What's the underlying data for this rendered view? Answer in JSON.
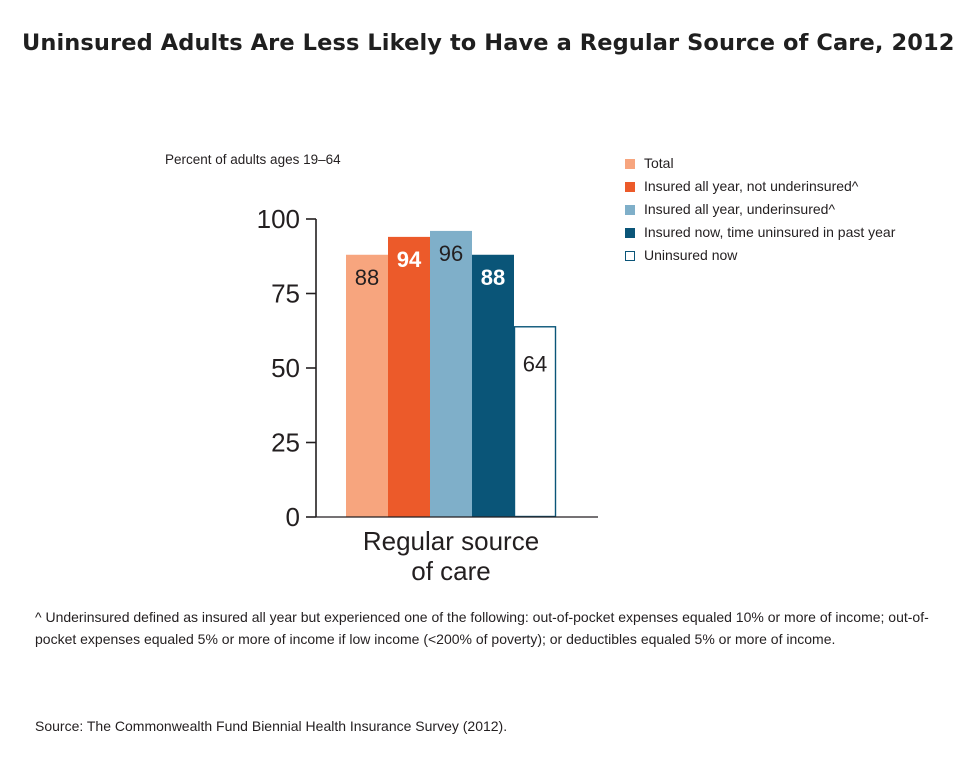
{
  "chart_data": {
    "type": "bar",
    "title": "Uninsured Adults Are Less Likely to Have a Regular Source of Care, 2012",
    "ylabel": "Percent of adults ages 19–64",
    "categories": [
      "Regular source of care"
    ],
    "category_lines": [
      "Regular source",
      "of care"
    ],
    "ylim": [
      0,
      100
    ],
    "yticks": [
      0,
      25,
      50,
      75,
      100
    ],
    "grid": false,
    "legend_position": "top-right",
    "series": [
      {
        "name": "Total",
        "values": [
          88
        ],
        "label": "88",
        "color": "#f7a57e",
        "label_color": "#231f20",
        "outline_only": false
      },
      {
        "name": "Insured all year, not underinsured^",
        "values": [
          94
        ],
        "label": "94",
        "color": "#ec5a2a",
        "label_color": "#ffffff",
        "outline_only": false
      },
      {
        "name": "Insured all year, underinsured^",
        "values": [
          96
        ],
        "label": "96",
        "color": "#7fafc9",
        "label_color": "#231f20",
        "outline_only": false
      },
      {
        "name": "Insured now, time uninsured in past year",
        "values": [
          88
        ],
        "label": "88",
        "color": "#0a5578",
        "label_color": "#ffffff",
        "outline_only": false
      },
      {
        "name": "Uninsured now",
        "values": [
          64
        ],
        "label": "64",
        "color": "#0a5578",
        "label_color": "#231f20",
        "outline_only": true
      }
    ]
  },
  "footnote": "^ Underinsured defined as insured all year but experienced one of the following: out-of-pocket expenses equaled 10% or more of income; out-of-pocket expenses equaled 5% or more of income if low income (<200% of poverty); or deductibles equaled 5% or more of income.",
  "source": "Source: The Commonwealth Fund Biennial Health Insurance Survey (2012)."
}
